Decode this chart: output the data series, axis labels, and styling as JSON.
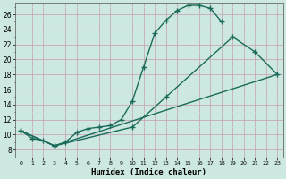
{
  "xlabel": "Humidex (Indice chaleur)",
  "bg_color": "#cce8e0",
  "line_color": "#1a6b5a",
  "xlim": [
    -0.5,
    23.5
  ],
  "ylim": [
    7,
    27.5
  ],
  "xticks": [
    0,
    1,
    2,
    3,
    4,
    5,
    6,
    7,
    8,
    9,
    10,
    11,
    12,
    13,
    14,
    15,
    16,
    17,
    18,
    19,
    20,
    21,
    22,
    23
  ],
  "yticks": [
    8,
    10,
    12,
    14,
    16,
    18,
    20,
    22,
    24,
    26
  ],
  "line1_x": [
    0,
    1,
    2,
    3,
    4,
    5,
    6,
    7,
    8,
    9,
    10,
    11,
    12,
    13,
    14,
    15,
    16,
    17,
    18
  ],
  "line1_y": [
    10.5,
    9.5,
    9.2,
    8.5,
    9.0,
    10.3,
    10.8,
    11.0,
    11.2,
    12.0,
    14.5,
    19.0,
    23.5,
    25.2,
    26.5,
    27.2,
    27.2,
    26.8,
    25.0
  ],
  "line2_x": [
    0,
    3,
    10,
    13,
    19,
    21,
    23
  ],
  "line2_y": [
    10.5,
    8.5,
    11.0,
    15.0,
    23.0,
    21.0,
    18.0
  ],
  "line3_x": [
    0,
    3,
    23
  ],
  "line3_y": [
    10.5,
    8.5,
    18.0
  ],
  "grid_color": "#b0d8ce",
  "grid_color2": "#c8e8e0"
}
